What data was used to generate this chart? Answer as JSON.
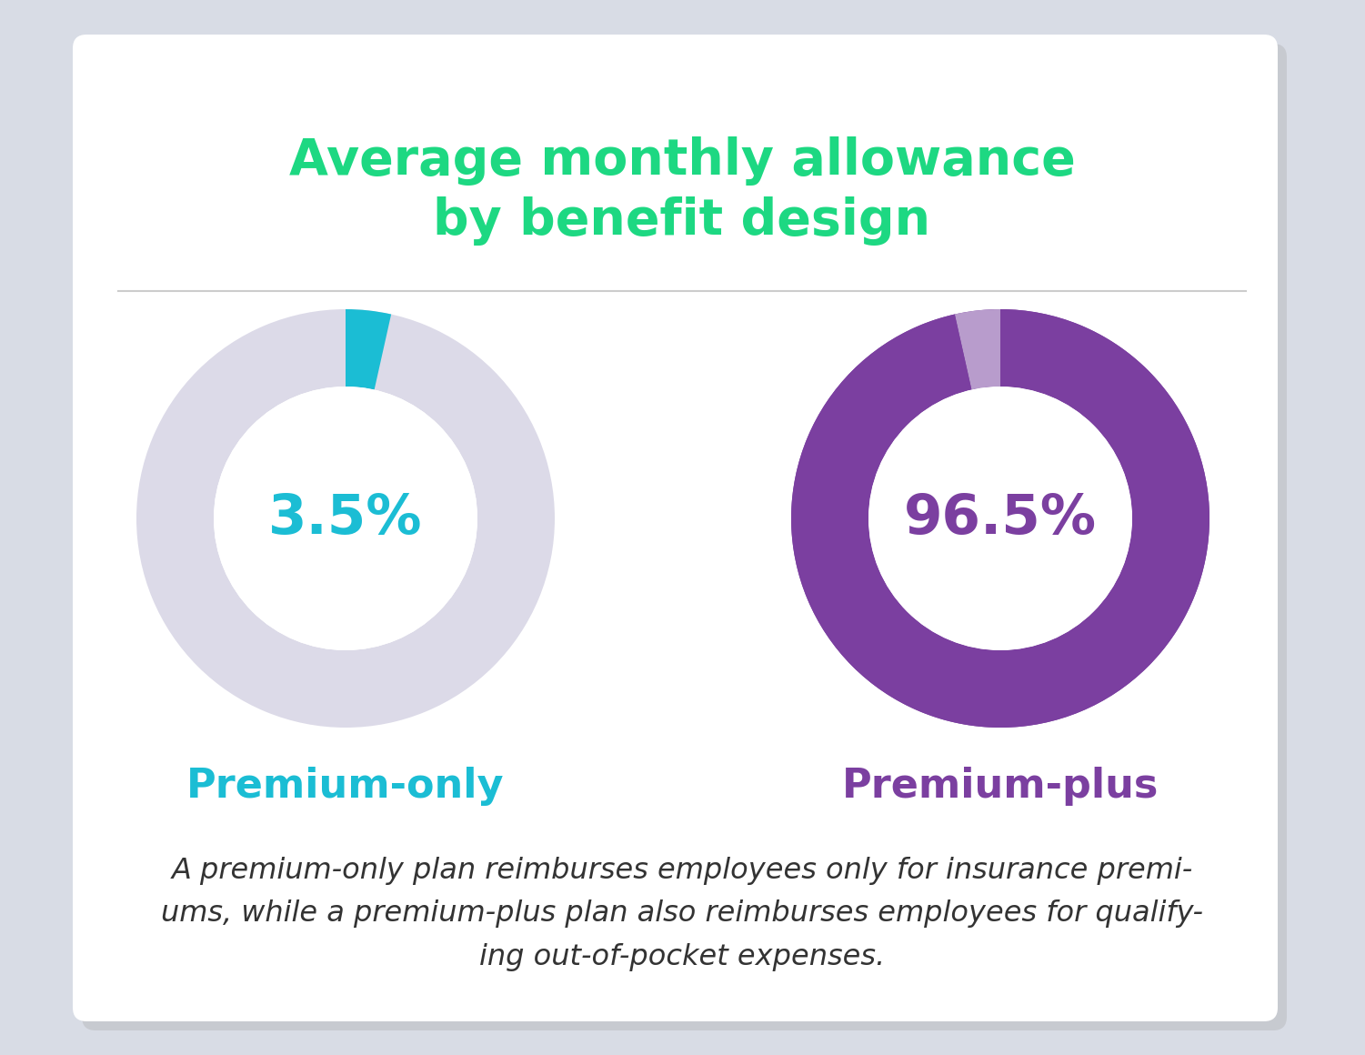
{
  "title_line1": "Average monthly allowance",
  "title_line2": "by benefit design",
  "title_color": "#1DD882",
  "background_outer": "#d8dce5",
  "background_card": "#ffffff",
  "divider_color": "#cccccc",
  "donut1_value": 3.5,
  "donut1_remainder": 96.5,
  "donut1_active_color": "#1BBDD4",
  "donut1_bg_color": "#dcdae8",
  "donut1_label": "3.5%",
  "donut1_label_color": "#1BBDD4",
  "donut1_title": "Premium-only",
  "donut1_title_color": "#1BBDD4",
  "donut2_value": 96.5,
  "donut2_remainder": 3.5,
  "donut2_active_color": "#7B3FA0",
  "donut2_gap_color": "#b89ccc",
  "donut2_label": "96.5%",
  "donut2_label_color": "#7B3FA0",
  "donut2_title": "Premium-plus",
  "donut2_title_color": "#7B3FA0",
  "footnote_color": "#333333",
  "footnote_text": "A premium-only plan reimburses employees only for insurance premi-\nums, while a premium-plus plan also reimburses employees for qualify-\ning out-of-pocket expenses.",
  "title_fontsize": 40,
  "label_fontsize": 44,
  "subtitle_fontsize": 32,
  "footnote_fontsize": 23
}
